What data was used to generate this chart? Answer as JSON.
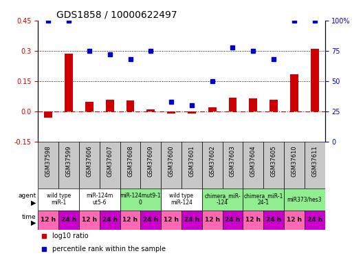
{
  "title": "GDS1858 / 10000622497",
  "samples": [
    "GSM37598",
    "GSM37599",
    "GSM37606",
    "GSM37607",
    "GSM37608",
    "GSM37609",
    "GSM37600",
    "GSM37601",
    "GSM37602",
    "GSM37603",
    "GSM37604",
    "GSM37605",
    "GSM37610",
    "GSM37611"
  ],
  "log10_ratio": [
    -0.03,
    0.285,
    0.05,
    0.06,
    0.055,
    0.01,
    -0.01,
    -0.01,
    0.02,
    0.07,
    0.065,
    0.06,
    0.185,
    0.31
  ],
  "percentile_rank_pct": [
    100,
    100,
    75,
    72,
    68,
    75,
    33,
    30,
    50,
    78,
    75,
    68,
    100,
    100
  ],
  "ylim_left": [
    -0.15,
    0.45
  ],
  "ylim_right": [
    0,
    100
  ],
  "yticks_left": [
    -0.15,
    0.0,
    0.15,
    0.3,
    0.45
  ],
  "yticks_right": [
    0,
    25,
    50,
    75,
    100
  ],
  "hlines": [
    0.15,
    0.3
  ],
  "agent_groups": [
    {
      "label": "wild type\nmiR-1",
      "start": 0,
      "end": 2,
      "color": "#ffffff"
    },
    {
      "label": "miR-124m\nut5-6",
      "start": 2,
      "end": 4,
      "color": "#ffffff"
    },
    {
      "label": "miR-124mut9-1\n0",
      "start": 4,
      "end": 6,
      "color": "#90ee90"
    },
    {
      "label": "wild type\nmiR-124",
      "start": 6,
      "end": 8,
      "color": "#ffffff"
    },
    {
      "label": "chimera_miR-\n-124",
      "start": 8,
      "end": 10,
      "color": "#90ee90"
    },
    {
      "label": "chimera_miR-1\n24-1",
      "start": 10,
      "end": 12,
      "color": "#90ee90"
    },
    {
      "label": "miR373/hes3",
      "start": 12,
      "end": 14,
      "color": "#90ee90"
    }
  ],
  "time_labels": [
    "12 h",
    "24 h",
    "12 h",
    "24 h",
    "12 h",
    "24 h",
    "12 h",
    "24 h",
    "12 h",
    "24 h",
    "12 h",
    "24 h",
    "12 h",
    "24 h"
  ],
  "time_color_12h": "#ff69b4",
  "time_color_24h": "#cc00cc",
  "bar_color": "#cc0000",
  "dot_color": "#0000cc",
  "hline_color": "#000000",
  "zero_line_color": "#cc0000",
  "sample_bg_color": "#c8c8c8",
  "bg_color": "#ffffff",
  "title_fontsize": 10,
  "tick_fontsize": 7,
  "sample_fontsize": 6,
  "table_fontsize": 6.5
}
